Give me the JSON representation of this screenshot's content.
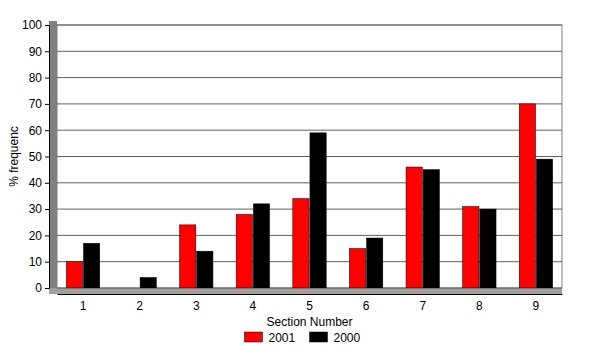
{
  "chart_data": {
    "type": "bar",
    "x_label": "Section Number",
    "y_label": "% frequenc",
    "categories": [
      "1",
      "2",
      "3",
      "4",
      "5",
      "6",
      "7",
      "8",
      "9"
    ],
    "series": [
      {
        "name": "2001",
        "color": "#ff0000",
        "values": [
          10,
          0,
          24,
          28,
          34,
          15,
          46,
          31,
          70
        ]
      },
      {
        "name": "2000",
        "color": "#000000",
        "values": [
          17,
          4,
          14,
          32,
          59,
          19,
          45,
          30,
          49
        ]
      }
    ],
    "ylim": [
      0,
      100
    ],
    "yticks": [
      0,
      10,
      20,
      30,
      40,
      50,
      60,
      70,
      80,
      90,
      100
    ],
    "grid": true,
    "legend": "bottom"
  }
}
